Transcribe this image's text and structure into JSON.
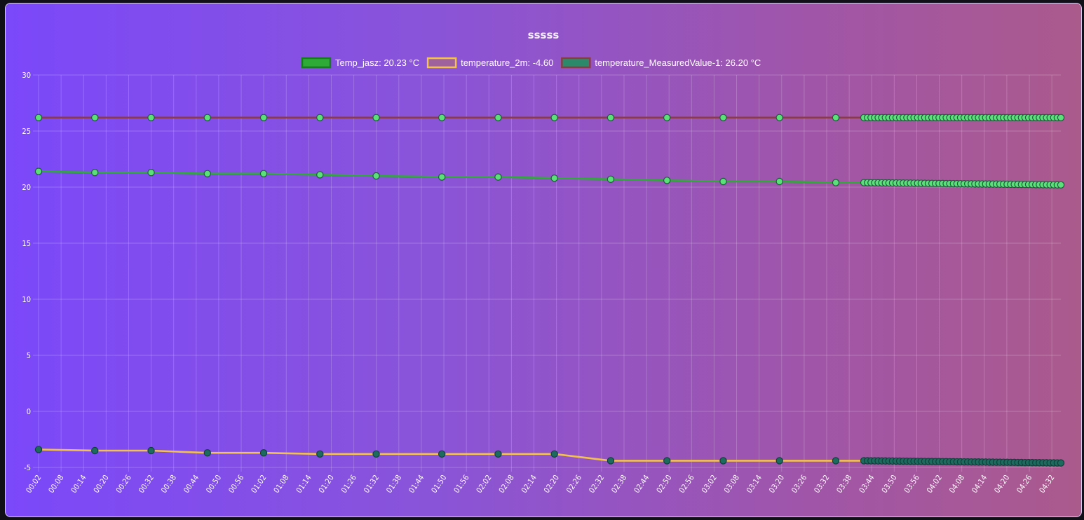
{
  "chart_data": {
    "type": "line",
    "title": "sssss",
    "ylim": [
      -5,
      30
    ],
    "yticks": [
      "30",
      "25",
      "20",
      "15",
      "10",
      "5",
      "0",
      "-5"
    ],
    "xticks": [
      "00:02",
      "00:08",
      "00:14",
      "00:20",
      "00:26",
      "00:32",
      "00:38",
      "00:44",
      "00:50",
      "00:56",
      "01:02",
      "01:08",
      "01:14",
      "01:20",
      "01:26",
      "01:32",
      "01:38",
      "01:44",
      "01:50",
      "01:56",
      "02:02",
      "02:08",
      "02:14",
      "02:20",
      "02:26",
      "02:32",
      "02:38",
      "02:44",
      "02:50",
      "02:56",
      "03:02",
      "03:08",
      "03:14",
      "03:20",
      "03:26",
      "03:32",
      "03:38",
      "03:44",
      "03:50",
      "03:56",
      "04:02",
      "04:08",
      "04:14",
      "04:20",
      "04:26",
      "04:32"
    ],
    "grid": true,
    "legend_position": "top",
    "series": [
      {
        "name": "Temp_jasz: 20.23 °C",
        "color": "#2eab36",
        "point_color": "#5be07a",
        "x": [
          0,
          6,
          12,
          18,
          24,
          30,
          36,
          43,
          49,
          55,
          61,
          67,
          73,
          79,
          85
        ],
        "values": [
          21.4,
          21.3,
          21.3,
          21.2,
          21.2,
          21.1,
          21.0,
          20.9,
          20.9,
          20.8,
          20.7,
          20.6,
          20.5,
          20.5,
          20.4
        ],
        "dense": {
          "x_start": 88,
          "x_end": 109,
          "count": 56,
          "values_start": 20.4,
          "values_end": 20.2
        }
      },
      {
        "name": "temperature_2m: -4.60",
        "color": "#f2c14e",
        "point_color": "#1d6a5f",
        "x": [
          0,
          6,
          12,
          18,
          24,
          30,
          36,
          43,
          49,
          55,
          61,
          67,
          73,
          79,
          85
        ],
        "values": [
          -3.4,
          -3.5,
          -3.5,
          -3.7,
          -3.7,
          -3.8,
          -3.8,
          -3.8,
          -3.8,
          -3.8,
          -4.4,
          -4.4,
          -4.4,
          -4.4,
          -4.4
        ],
        "dense": {
          "x_start": 88,
          "x_end": 109,
          "count": 56,
          "values_start": -4.4,
          "values_end": -4.6
        }
      },
      {
        "name": "temperature_MeasuredValue-1: 26.20 °C",
        "color": "#8a3b4a",
        "point_color": "#5be07a",
        "x": [
          0,
          6,
          12,
          18,
          24,
          30,
          36,
          43,
          49,
          55,
          61,
          67,
          73,
          79,
          85
        ],
        "values": [
          26.2,
          26.2,
          26.2,
          26.2,
          26.2,
          26.2,
          26.2,
          26.2,
          26.2,
          26.2,
          26.2,
          26.2,
          26.2,
          26.2,
          26.2
        ],
        "dense": {
          "x_start": 88,
          "x_end": 109,
          "count": 56,
          "values_start": 26.2,
          "values_end": 26.2
        }
      }
    ]
  }
}
